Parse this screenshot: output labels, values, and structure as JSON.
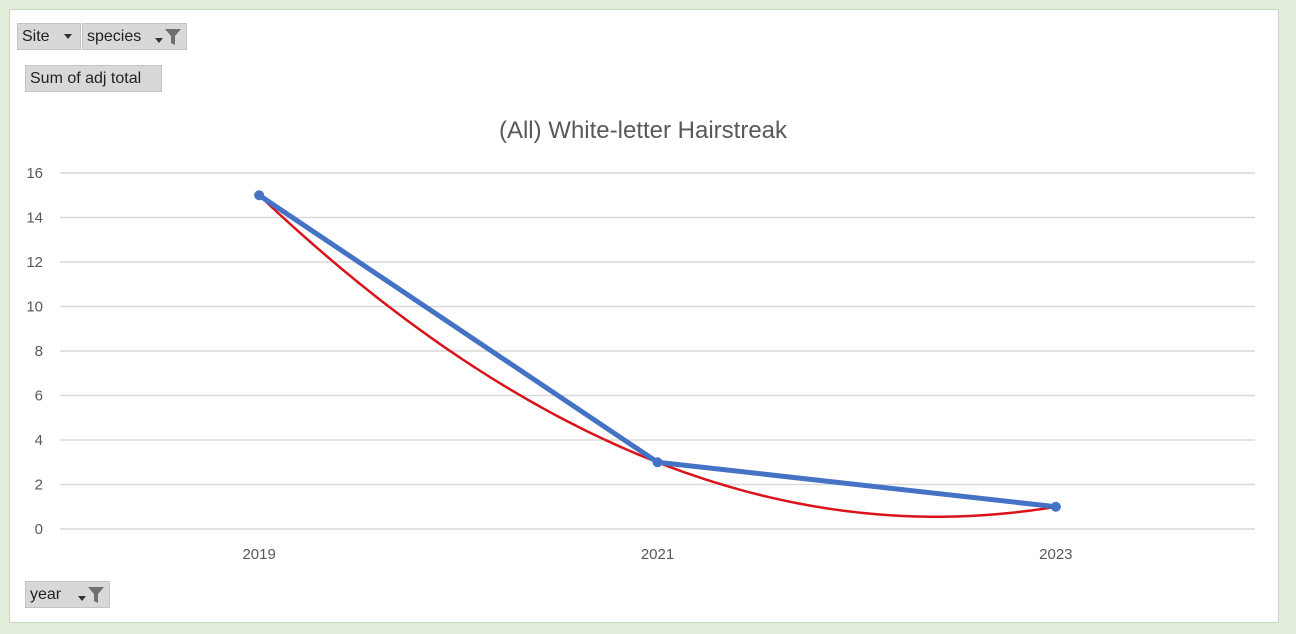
{
  "filters": {
    "site_label": "Site",
    "species_label": "species",
    "value_field_label": "Sum of adj total",
    "axis_field_label": "year"
  },
  "colors": {
    "series": "#4472c4",
    "trendline": "#d9141b",
    "grid": "#d9d9d9",
    "text": "#595959"
  },
  "chart_data": {
    "type": "line",
    "title": "(All) White-letter Hairstreak",
    "categories": [
      "2019",
      "2021",
      "2023"
    ],
    "series": [
      {
        "values": [
          15,
          3,
          1
        ]
      }
    ],
    "trendline": {
      "type": "polynomial",
      "degree": 2,
      "values": [
        15,
        3,
        1
      ]
    },
    "ylim": [
      0,
      16
    ],
    "yticks": [
      "0",
      "2",
      "4",
      "6",
      "8",
      "10",
      "12",
      "14",
      "16"
    ],
    "grid": true,
    "legend": "none"
  }
}
